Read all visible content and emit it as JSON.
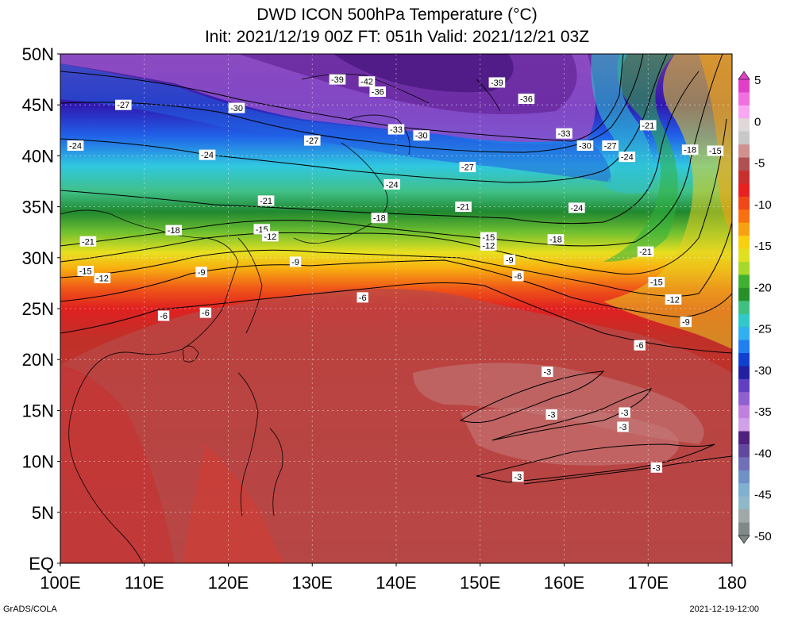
{
  "header": {
    "title": "DWD ICON 500hPa Temperature (°C)",
    "subtitle": "Init: 2021/12/19 00Z  FT: 051h  Valid: 2021/12/21 03Z"
  },
  "axes": {
    "lat_labels": [
      "50N",
      "45N",
      "40N",
      "35N",
      "30N",
      "25N",
      "20N",
      "15N",
      "10N",
      "5N",
      "EQ"
    ],
    "lon_labels": [
      "100E",
      "110E",
      "120E",
      "130E",
      "140E",
      "150E",
      "160E",
      "170E",
      "180"
    ]
  },
  "colorbar": {
    "labels": [
      "5",
      "0",
      "-5",
      "-10",
      "-15",
      "-20",
      "-25",
      "-30",
      "-35",
      "-40",
      "-45",
      "-50"
    ],
    "colors": [
      "#e040c8",
      "#f070e0",
      "#f8a8f0",
      "#e0d8d8",
      "#c8c8c8",
      "#d09090",
      "#b05050",
      "#c83030",
      "#e82020",
      "#f04818",
      "#f87010",
      "#f8a010",
      "#f8d010",
      "#e0e020",
      "#a8d828",
      "#40b030",
      "#289028",
      "#40c080",
      "#30c8c8",
      "#30b0f0",
      "#2080f0",
      "#1040d0",
      "#2020a0",
      "#6040c0",
      "#9060d0",
      "#c080e0",
      "#d0a0e8",
      "#502080",
      "#6048a0",
      "#7070b8",
      "#7090c8",
      "#80b0d0",
      "#90b8c8",
      "#a0a8a8",
      "#808888"
    ]
  },
  "contour_labels": [
    {
      "text": "-39",
      "lon": 133,
      "lat": 47.5
    },
    {
      "text": "-42",
      "lon": 136.5,
      "lat": 47.3
    },
    {
      "text": "-36",
      "lon": 137.8,
      "lat": 46.3
    },
    {
      "text": "-39",
      "lon": 152,
      "lat": 47.2
    },
    {
      "text": "-36",
      "lon": 155.5,
      "lat": 45.6
    },
    {
      "text": "-27",
      "lon": 107.5,
      "lat": 45.0
    },
    {
      "text": "-30",
      "lon": 121,
      "lat": 44.7
    },
    {
      "text": "-33",
      "lon": 140,
      "lat": 42.6
    },
    {
      "text": "-33",
      "lon": 160,
      "lat": 42.2
    },
    {
      "text": "-21",
      "lon": 170,
      "lat": 43.0
    },
    {
      "text": "-24",
      "lon": 101.8,
      "lat": 41.0
    },
    {
      "text": "-27",
      "lon": 130,
      "lat": 41.5
    },
    {
      "text": "-30",
      "lon": 143,
      "lat": 42.0
    },
    {
      "text": "-30",
      "lon": 162.5,
      "lat": 41.0
    },
    {
      "text": "-27",
      "lon": 165.5,
      "lat": 41.0
    },
    {
      "text": "-18",
      "lon": 175,
      "lat": 40.6
    },
    {
      "text": "-15",
      "lon": 178,
      "lat": 40.5
    },
    {
      "text": "-24",
      "lon": 117.5,
      "lat": 40.1
    },
    {
      "text": "-24",
      "lon": 167.5,
      "lat": 39.9
    },
    {
      "text": "-27",
      "lon": 148.5,
      "lat": 38.9
    },
    {
      "text": "-24",
      "lon": 139.5,
      "lat": 37.2
    },
    {
      "text": "-21",
      "lon": 124.5,
      "lat": 35.6
    },
    {
      "text": "-21",
      "lon": 148,
      "lat": 35.0
    },
    {
      "text": "-24",
      "lon": 161.5,
      "lat": 34.9
    },
    {
      "text": "-18",
      "lon": 138,
      "lat": 33.9
    },
    {
      "text": "-18",
      "lon": 113.5,
      "lat": 32.7
    },
    {
      "text": "-15",
      "lon": 124,
      "lat": 32.8
    },
    {
      "text": "-12",
      "lon": 125,
      "lat": 32.1
    },
    {
      "text": "-15",
      "lon": 151,
      "lat": 32.0
    },
    {
      "text": "-12",
      "lon": 151,
      "lat": 31.2
    },
    {
      "text": "-18",
      "lon": 159,
      "lat": 31.8
    },
    {
      "text": "-21",
      "lon": 103.3,
      "lat": 31.6
    },
    {
      "text": "-21",
      "lon": 169.7,
      "lat": 30.6
    },
    {
      "text": "-9",
      "lon": 128,
      "lat": 29.6
    },
    {
      "text": "-9",
      "lon": 153.5,
      "lat": 29.8
    },
    {
      "text": "-15",
      "lon": 103,
      "lat": 28.7
    },
    {
      "text": "-12",
      "lon": 105,
      "lat": 28.0
    },
    {
      "text": "-9",
      "lon": 116.8,
      "lat": 28.6
    },
    {
      "text": "-6",
      "lon": 154.5,
      "lat": 28.2
    },
    {
      "text": "-15",
      "lon": 171,
      "lat": 27.6
    },
    {
      "text": "-6",
      "lon": 136,
      "lat": 26.1
    },
    {
      "text": "-12",
      "lon": 173,
      "lat": 25.9
    },
    {
      "text": "-6",
      "lon": 112.3,
      "lat": 24.3
    },
    {
      "text": "-6",
      "lon": 117.3,
      "lat": 24.6
    },
    {
      "text": "-9",
      "lon": 174.5,
      "lat": 23.7
    },
    {
      "text": "-6",
      "lon": 169,
      "lat": 21.4
    },
    {
      "text": "-3",
      "lon": 158,
      "lat": 18.8
    },
    {
      "text": "-3",
      "lon": 158.5,
      "lat": 14.6
    },
    {
      "text": "-3",
      "lon": 167.2,
      "lat": 14.8
    },
    {
      "text": "-3",
      "lon": 167,
      "lat": 13.4
    },
    {
      "text": "-3",
      "lon": 171,
      "lat": 9.4
    },
    {
      "text": "-3",
      "lon": 154.5,
      "lat": 8.5
    }
  ],
  "footer": {
    "left": "GrADS/COLA",
    "right": "2021-12-19-12:00"
  }
}
